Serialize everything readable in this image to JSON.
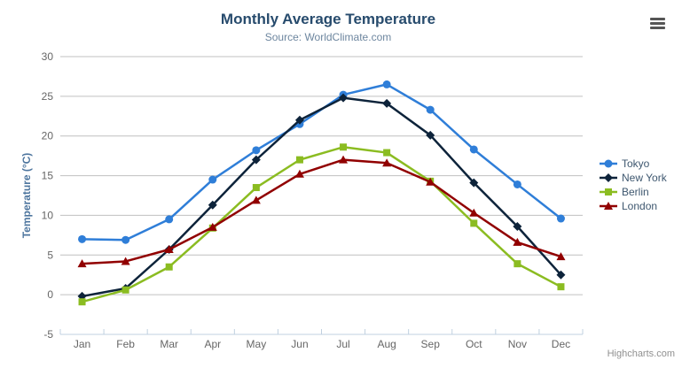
{
  "header": {
    "context_menu_icon": "hamburger-icon"
  },
  "credits": {
    "label": "Highcharts.com"
  },
  "chart_data": {
    "type": "line",
    "title": "Monthly Average Temperature",
    "subtitle": "Source: WorldClimate.com",
    "categories": [
      "Jan",
      "Feb",
      "Mar",
      "Apr",
      "May",
      "Jun",
      "Jul",
      "Aug",
      "Sep",
      "Oct",
      "Nov",
      "Dec"
    ],
    "xlabel": "",
    "ylabel": "Temperature (°C)",
    "ylim": [
      -5,
      30
    ],
    "ytick_interval": 5,
    "grid": true,
    "legend_position": "right",
    "series": [
      {
        "name": "Tokyo",
        "marker": "circle",
        "color": "#2f7ed8",
        "values": [
          7.0,
          6.9,
          9.5,
          14.5,
          18.2,
          21.5,
          25.2,
          26.5,
          23.3,
          18.3,
          13.9,
          9.6
        ]
      },
      {
        "name": "New York",
        "marker": "diamond",
        "color": "#0d233a",
        "values": [
          -0.2,
          0.8,
          5.7,
          11.3,
          17.0,
          22.0,
          24.8,
          24.1,
          20.1,
          14.1,
          8.6,
          2.5
        ]
      },
      {
        "name": "Berlin",
        "marker": "square",
        "color": "#8bbc21",
        "values": [
          -0.9,
          0.6,
          3.5,
          8.4,
          13.5,
          17.0,
          18.6,
          17.9,
          14.3,
          9.0,
          3.9,
          1.0
        ]
      },
      {
        "name": "London",
        "marker": "triangle",
        "color": "#910000",
        "values": [
          3.9,
          4.2,
          5.7,
          8.5,
          11.9,
          15.2,
          17.0,
          16.6,
          14.2,
          10.3,
          6.6,
          4.8
        ]
      }
    ],
    "colors": {
      "grid": "#c0c0c0",
      "axis_line": "#c0d0e0",
      "label": "#666666",
      "title": "#274b6d",
      "subtitle": "#6d869f",
      "axis_title": "#4d759e",
      "legend_text": "#3e576f",
      "credits": "#909090",
      "menu_icon": "#555555"
    }
  }
}
